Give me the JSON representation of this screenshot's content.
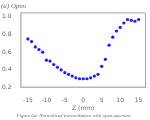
{
  "chart_data": {
    "type": "scatter",
    "title": "(a) Open",
    "xlabel": "Z (mm)",
    "subtitle": "Figure 6a: Normalized transmittance with open aperture",
    "x": [
      -15,
      -14,
      -13,
      -12,
      -11,
      -10,
      -9,
      -8,
      -7,
      -6,
      -5,
      -4,
      -3,
      -2,
      -1,
      0,
      1,
      2,
      3,
      4,
      5,
      6,
      7,
      8,
      9,
      10,
      11,
      12,
      13,
      14,
      15
    ],
    "y": [
      0.75,
      0.72,
      0.66,
      0.63,
      0.6,
      0.51,
      0.5,
      0.46,
      0.43,
      0.4,
      0.37,
      0.35,
      0.33,
      0.31,
      0.3,
      0.3,
      0.3,
      0.31,
      0.33,
      0.35,
      0.44,
      0.52,
      0.68,
      0.77,
      0.84,
      0.88,
      0.93,
      0.97,
      0.96,
      0.95,
      0.97
    ],
    "color": "#1a1aff",
    "xlim": [
      -17,
      17
    ],
    "xticks": [
      -15,
      -10,
      -5,
      0,
      5,
      10,
      15
    ],
    "ylim": [
      0.2,
      1.05
    ],
    "yticks": [
      0.2,
      0.4,
      0.6,
      0.8,
      {
        "value": 1.0,
        "label": "1.0"
      }
    ],
    "grid": false
  }
}
